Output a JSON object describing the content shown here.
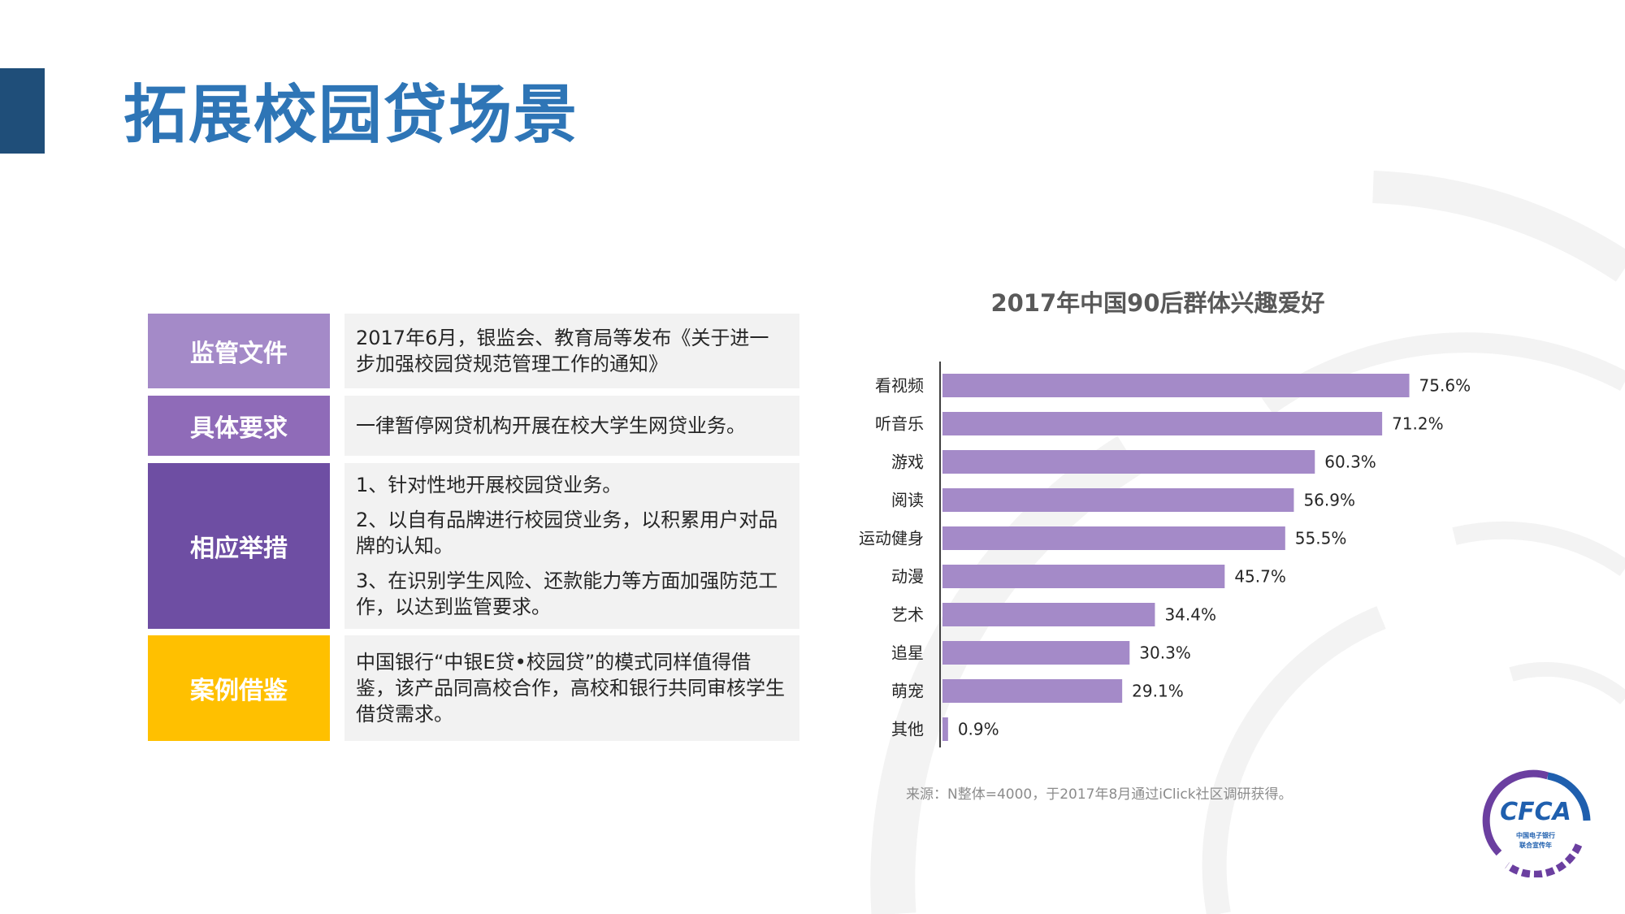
{
  "header": {
    "title": "拓展校园贷场景"
  },
  "rows": [
    {
      "label": "监管文件",
      "color": "#a48ac8",
      "content": [
        "2017年6月，银监会、教育局等发布《关于进一步加强校园贷规范管理工作的通知》"
      ]
    },
    {
      "label": "具体要求",
      "color": "#8f6bb8",
      "content": [
        "一律暂停网贷机构开展在校大学生网贷业务。"
      ]
    },
    {
      "label": "相应举措",
      "color": "#6e4ea3",
      "content": [
        "1、针对性地开展校园贷业务。",
        "2、以自有品牌进行校园贷业务，以积累用户对品牌的认知。",
        "3、在识别学生风险、还款能力等方面加强防范工作，以达到监管要求。"
      ]
    },
    {
      "label": "案例借鉴",
      "color": "#ffc000",
      "content": [
        "中国银行“中银E贷•校园贷”的模式同样值得借鉴，该产品同高校合作，高校和银行共同审核学生借贷需求。"
      ]
    }
  ],
  "chart_data": {
    "type": "bar",
    "orientation": "horizontal",
    "title": "2017年中国90后群体兴趣爱好",
    "categories": [
      "看视频",
      "听音乐",
      "游戏",
      "阅读",
      "运动健身",
      "动漫",
      "艺术",
      "追星",
      "萌宠",
      "其他"
    ],
    "values": [
      75.6,
      71.2,
      60.3,
      56.9,
      55.5,
      45.7,
      34.4,
      30.3,
      29.1,
      0.9
    ],
    "value_labels": [
      "75.6%",
      "71.2%",
      "60.3%",
      "56.9%",
      "55.5%",
      "45.7%",
      "34.4%",
      "30.3%",
      "29.1%",
      "0.9%"
    ],
    "xlim": [
      0,
      100
    ],
    "bar_color": "#a48ac8",
    "grid": false,
    "legend": "none"
  },
  "source_note": "来源：N整体=4000，于2017年8月通过iClick社区调研获得。",
  "logo": {
    "text": "CFCA",
    "sub1": "中国电子银行",
    "sub2": "联合宣传年"
  }
}
